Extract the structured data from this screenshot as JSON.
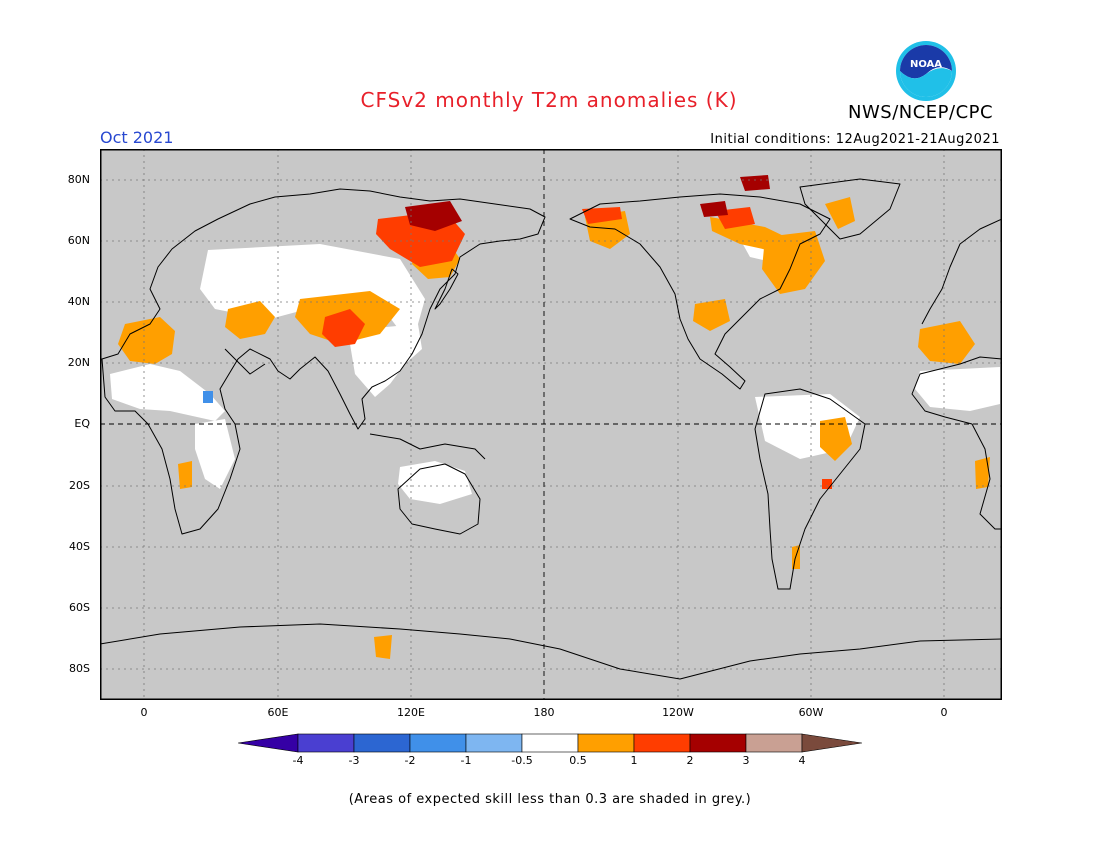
{
  "header": {
    "title": "CFSv2 monthly T2m anomalies (K)",
    "agency": "NWS/NCEP/CPC",
    "month": "Oct 2021",
    "initial_conditions": "Initial conditions: 12Aug2021-21Aug2021",
    "logo_text": "NOAA"
  },
  "axes": {
    "lat_labels": [
      "80N",
      "60N",
      "40N",
      "20N",
      "EQ",
      "20S",
      "40S",
      "60S",
      "80S"
    ],
    "lat_values": [
      80,
      60,
      40,
      20,
      0,
      -20,
      -40,
      -60,
      -80
    ],
    "lon_labels": [
      "0",
      "60E",
      "120E",
      "180",
      "120W",
      "60W",
      "0"
    ],
    "lon_values": [
      0,
      60,
      120,
      180,
      240,
      300,
      360
    ]
  },
  "legend": {
    "labels": [
      "-4",
      "-3",
      "-2",
      "-1",
      "-0.5",
      "0.5",
      "1",
      "2",
      "3",
      "4"
    ],
    "colors": [
      "#3500a5",
      "#4a3fd1",
      "#2c66d2",
      "#4090e9",
      "#7eb6f1",
      "#ffffff",
      "#ff9f00",
      "#ff3d00",
      "#a50000",
      "#c9a093",
      "#7a4a3c"
    ]
  },
  "footer": {
    "note": "(Areas of expected skill less than 0.3 are shaded in grey.)"
  },
  "colors": {
    "skill_mask": "#c8c8c8",
    "title": "#e8202a",
    "month": "#2848d0"
  }
}
